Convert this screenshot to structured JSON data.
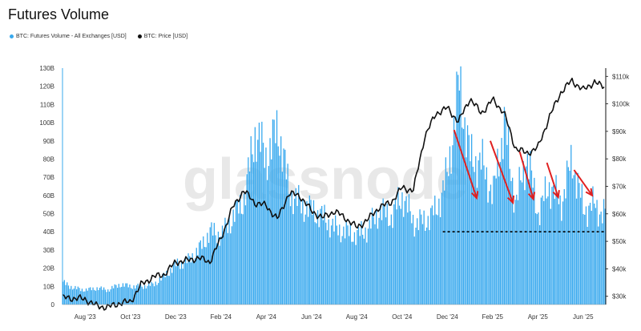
{
  "chart_data": {
    "type": "bar+line",
    "title": "Futures Volume",
    "watermark": "glassnode",
    "legend": [
      {
        "label": "BTC: Futures Volume - All Exchanges [USD]",
        "color": "#38a9ee"
      },
      {
        "label": "BTC: Price [USD]",
        "color": "#111111"
      }
    ],
    "x_ticks": [
      "Aug '23",
      "Oct '23",
      "Dec '23",
      "Feb '24",
      "Apr '24",
      "Jun '24",
      "Aug '24",
      "Oct '24",
      "Dec '24",
      "Feb '25",
      "Apr '25",
      "Jun '25"
    ],
    "y_left_ticks": [
      "0",
      "10B",
      "20B",
      "30B",
      "40B",
      "50B",
      "60B",
      "70B",
      "80B",
      "90B",
      "100B",
      "110B",
      "120B",
      "130B"
    ],
    "y_left_range": [
      0,
      130
    ],
    "y_right_ticks": [
      "$30k",
      "$40k",
      "$50k",
      "$60k",
      "$70k",
      "$80k",
      "$90k",
      "$100k",
      "$110k"
    ],
    "y_right_range": [
      27,
      113
    ],
    "x_range_months": [
      0,
      24
    ],
    "volume_series": {
      "name": "BTC: Futures Volume - All Exchanges [USD]",
      "unit": "B USD",
      "points": [
        [
          0.0,
          12
        ],
        [
          0.5,
          9
        ],
        [
          1.0,
          8
        ],
        [
          1.5,
          9
        ],
        [
          2.0,
          8
        ],
        [
          2.5,
          11
        ],
        [
          3.0,
          10
        ],
        [
          3.5,
          10
        ],
        [
          4.0,
          11
        ],
        [
          4.5,
          16
        ],
        [
          5.0,
          22
        ],
        [
          5.5,
          24
        ],
        [
          6.0,
          30
        ],
        [
          6.5,
          40
        ],
        [
          7.0,
          38
        ],
        [
          7.5,
          48
        ],
        [
          8.0,
          58
        ],
        [
          8.5,
          95
        ],
        [
          9.0,
          80
        ],
        [
          9.5,
          98
        ],
        [
          10.0,
          62
        ],
        [
          10.5,
          55
        ],
        [
          11.0,
          52
        ],
        [
          11.5,
          48
        ],
        [
          12.0,
          42
        ],
        [
          12.5,
          40
        ],
        [
          13.0,
          38
        ],
        [
          13.5,
          42
        ],
        [
          14.0,
          52
        ],
        [
          14.5,
          48
        ],
        [
          15.0,
          60
        ],
        [
          15.5,
          45
        ],
        [
          16.0,
          46
        ],
        [
          16.5,
          52
        ],
        [
          17.0,
          72
        ],
        [
          17.5,
          122
        ],
        [
          18.0,
          80
        ],
        [
          18.5,
          78
        ],
        [
          19.0,
          60
        ],
        [
          19.5,
          100
        ],
        [
          20.0,
          55
        ],
        [
          20.5,
          82
        ],
        [
          21.0,
          50
        ],
        [
          21.5,
          66
        ],
        [
          22.0,
          55
        ],
        [
          22.5,
          80
        ],
        [
          23.0,
          52
        ],
        [
          23.5,
          55
        ],
        [
          23.8,
          50
        ]
      ]
    },
    "price_series": {
      "name": "BTC: Price [USD]",
      "unit": "k USD",
      "points": [
        [
          0.0,
          29.5
        ],
        [
          0.5,
          29.3
        ],
        [
          1.0,
          29.0
        ],
        [
          1.5,
          26.5
        ],
        [
          2.0,
          26.0
        ],
        [
          2.5,
          27.5
        ],
        [
          3.0,
          28.0
        ],
        [
          3.5,
          34.5
        ],
        [
          4.0,
          37.0
        ],
        [
          4.5,
          38.0
        ],
        [
          5.0,
          42.5
        ],
        [
          5.5,
          43.0
        ],
        [
          6.0,
          44.0
        ],
        [
          6.5,
          42.5
        ],
        [
          7.0,
          51.0
        ],
        [
          7.5,
          62.0
        ],
        [
          8.0,
          68.5
        ],
        [
          8.5,
          64.0
        ],
        [
          9.0,
          63.0
        ],
        [
          9.5,
          58.0
        ],
        [
          10.0,
          67.5
        ],
        [
          10.5,
          66.5
        ],
        [
          11.0,
          61.0
        ],
        [
          11.5,
          58.5
        ],
        [
          12.0,
          61.0
        ],
        [
          12.5,
          58.5
        ],
        [
          13.0,
          55.0
        ],
        [
          13.5,
          58.0
        ],
        [
          14.0,
          62.5
        ],
        [
          14.5,
          64.0
        ],
        [
          15.0,
          69.5
        ],
        [
          15.5,
          68.5
        ],
        [
          16.0,
          88.0
        ],
        [
          16.5,
          96.5
        ],
        [
          17.0,
          98.5
        ],
        [
          17.5,
          93.5
        ],
        [
          18.0,
          102.0
        ],
        [
          18.5,
          96.5
        ],
        [
          19.0,
          101.5
        ],
        [
          19.5,
          97.0
        ],
        [
          20.0,
          84.0
        ],
        [
          20.5,
          82.0
        ],
        [
          21.0,
          84.0
        ],
        [
          21.5,
          95.0
        ],
        [
          22.0,
          104.0
        ],
        [
          22.5,
          108.5
        ],
        [
          23.0,
          105.0
        ],
        [
          23.5,
          108.0
        ],
        [
          23.8,
          106.5
        ]
      ]
    },
    "annotations": {
      "support_line_value": 40,
      "arrows": [
        {
          "from": [
            17.3,
            96
          ],
          "to": [
            18.3,
            58.5
          ]
        },
        {
          "from": [
            18.9,
            90
          ],
          "to": [
            19.9,
            56
          ]
        },
        {
          "from": [
            20.2,
            84
          ],
          "to": [
            20.8,
            58
          ]
        },
        {
          "from": [
            21.4,
            78
          ],
          "to": [
            21.9,
            59
          ]
        },
        {
          "from": [
            22.6,
            74
          ],
          "to": [
            23.4,
            60
          ]
        }
      ]
    }
  }
}
